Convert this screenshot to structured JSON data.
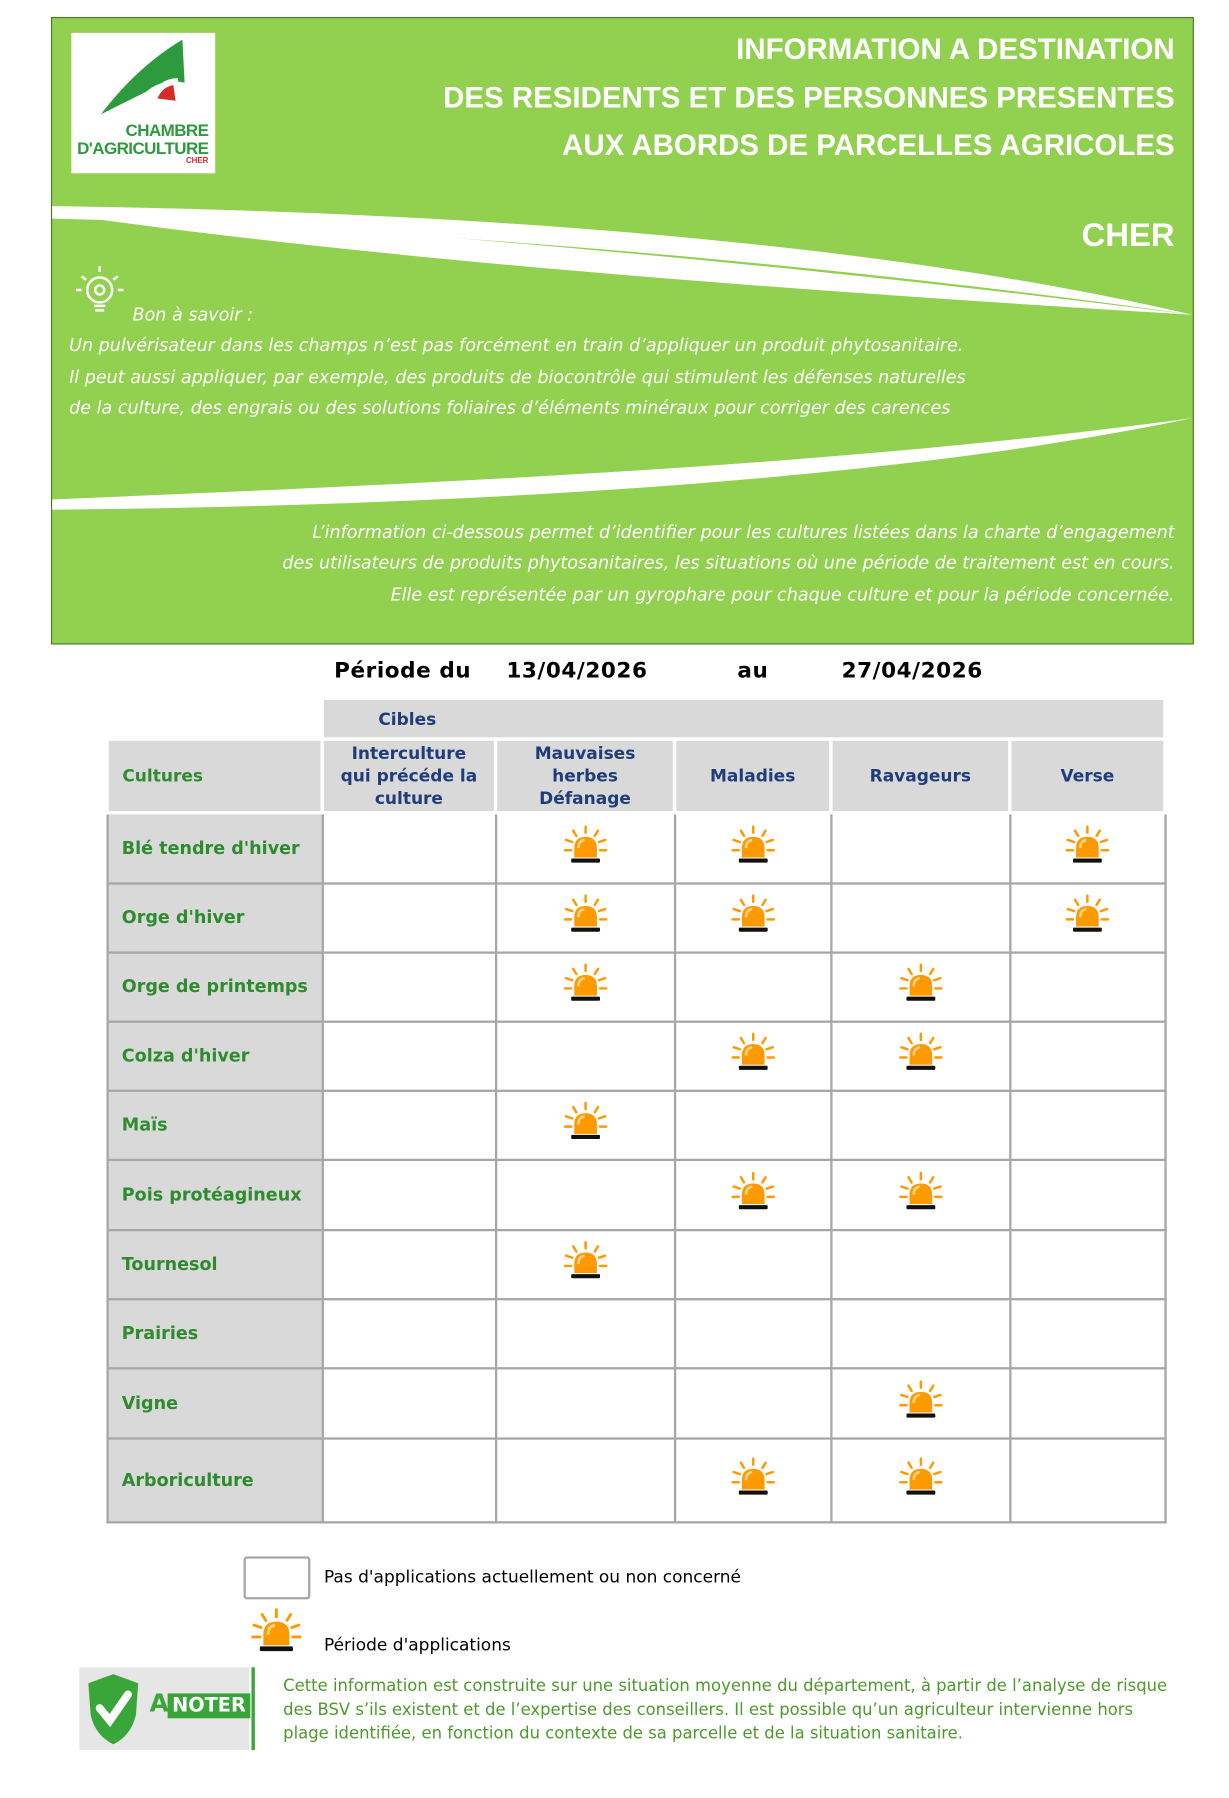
{
  "header": {
    "logo": {
      "line1": "CHAMBRE",
      "line2": "D'AGRICULTURE",
      "line3": "CHER"
    },
    "title_lines": [
      "INFORMATION A DESTINATION",
      "DES RESIDENTS ET DES PERSONNES PRESENTES",
      "AUX ABORDS DE PARCELLES AGRICOLES"
    ],
    "department": "CHER",
    "tip_title": "Bon à savoir :",
    "tip_lines": [
      "Un pulvérisateur dans les champs n’est pas forcément en train d’appliquer un produit phytosanitaire.",
      "Il peut aussi appliquer, par exemple, des produits de biocontrôle qui stimulent les défenses naturelles",
      "de la culture, des engrais ou des solutions foliaires d’éléments minéraux pour corriger des carences"
    ],
    "intro_lines": [
      "L’information ci-dessous permet d’identifier pour les cultures listées dans la charte d’engagement",
      "des utilisateurs de produits phytosanitaires, les situations où une période de traitement est en cours.",
      "Elle est représentée par un gyrophare pour chaque culture et pour la période concernée."
    ]
  },
  "period": {
    "label_from": "Période du",
    "from": "13/04/2026",
    "label_to": "au",
    "to": "27/04/2026"
  },
  "table": {
    "targets_label": "Cibles",
    "first_header": "Cultures",
    "columns": [
      "Interculture qui précéde la culture",
      "Mauvaises herbes Défanage",
      "Maladies",
      "Ravageurs",
      "Verse"
    ],
    "rows": [
      {
        "culture": "Blé tendre d'hiver",
        "cells": [
          false,
          true,
          true,
          false,
          true
        ]
      },
      {
        "culture": "Orge d'hiver",
        "cells": [
          false,
          true,
          true,
          false,
          true
        ]
      },
      {
        "culture": "Orge de printemps",
        "cells": [
          false,
          true,
          false,
          true,
          false
        ]
      },
      {
        "culture": "Colza d'hiver",
        "cells": [
          false,
          false,
          true,
          true,
          false
        ]
      },
      {
        "culture": "Maïs",
        "cells": [
          false,
          true,
          false,
          false,
          false
        ]
      },
      {
        "culture": "Pois protéagineux",
        "cells": [
          false,
          false,
          true,
          true,
          false
        ]
      },
      {
        "culture": "Tournesol",
        "cells": [
          false,
          true,
          false,
          false,
          false
        ]
      },
      {
        "culture": "Prairies",
        "cells": [
          false,
          false,
          false,
          false,
          false
        ]
      },
      {
        "culture": "Vigne",
        "cells": [
          false,
          false,
          false,
          true,
          false
        ]
      },
      {
        "culture": "Arboriculture",
        "cells": [
          false,
          false,
          true,
          true,
          false
        ]
      }
    ]
  },
  "legend": {
    "empty": "Pas d'applications actuellement ou non concerné",
    "active": "Période d'applications"
  },
  "note": {
    "badge_a": "A",
    "badge_rest": "NOTER",
    "lines": [
      "Cette information est construite sur une situation moyenne du département, à partir de l’analyse de risque",
      "des BSV s’ils existent et de l’expertise des conseillers. Il est possible qu’un agriculteur intervienne hors",
      "plage identifiée, en fonction du contexte de sa parcelle et de la situation sanitaire."
    ]
  }
}
